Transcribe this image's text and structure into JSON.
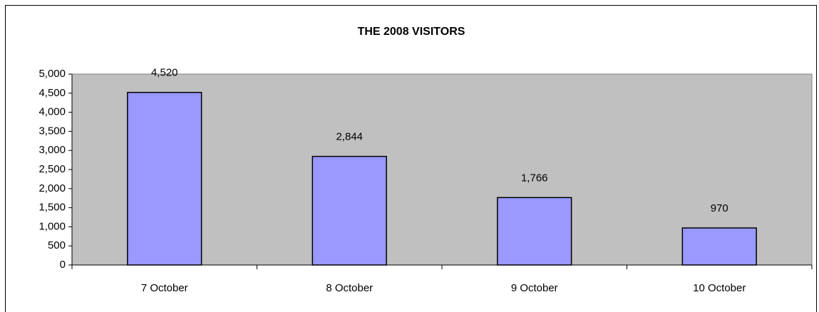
{
  "chart_data": {
    "type": "bar",
    "title": "THE 2008 VISITORS",
    "categories": [
      "7 October",
      "8 October",
      "9 October",
      "10 October"
    ],
    "values": [
      4520,
      2844,
      1766,
      970
    ],
    "value_labels": [
      "4,520",
      "2,844",
      "1,766",
      "970"
    ],
    "color": "#9999ff",
    "ylim": [
      0,
      5000
    ],
    "yticks": [
      0,
      500,
      {
        "value": 1000,
        "label": "1,000"
      },
      {
        "value": 1500,
        "label": "1,500"
      },
      {
        "value": 2000,
        "label": "2,000"
      },
      {
        "value": 2500,
        "label": "2,500"
      },
      {
        "value": 3000,
        "label": "3,000"
      },
      {
        "value": 3500,
        "label": "3,500"
      },
      {
        "value": 4000,
        "label": "4,000"
      },
      {
        "value": 4500,
        "label": "4,500"
      },
      {
        "value": 5000,
        "label": "5,000"
      }
    ]
  }
}
